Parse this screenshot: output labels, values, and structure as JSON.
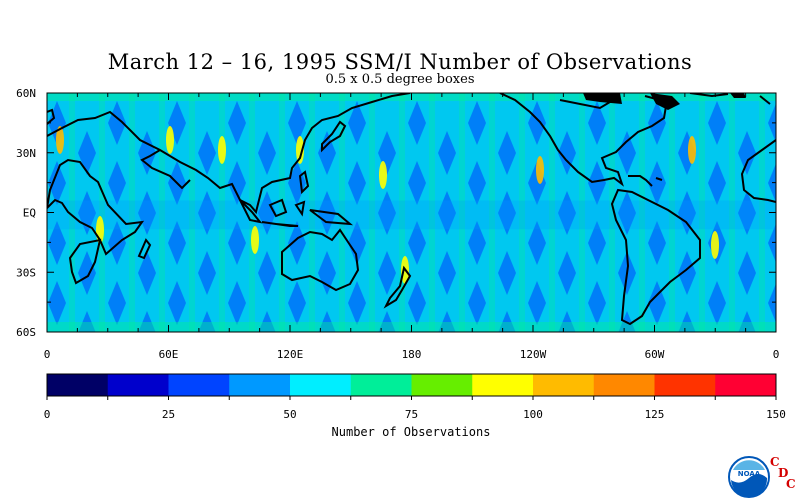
{
  "title": "March 12 – 16, 1995 SSM/I Number of Observations",
  "subtitle": "0.5 x 0.5 degree boxes",
  "map": {
    "lat_labels": [
      "60N",
      "30N",
      "EQ",
      "30S",
      "60S"
    ],
    "lon_labels": [
      "0",
      "60E",
      "120E",
      "180",
      "120W",
      "60W",
      "0"
    ],
    "projection": "cylindrical, 0 to 360 longitude, 60S to 60N"
  },
  "colorbar": {
    "label": "Number of Observations",
    "ticks": [
      "0",
      "25",
      "50",
      "75",
      "100",
      "125",
      "150"
    ],
    "colors": [
      "#000066",
      "#0000cc",
      "#0044ff",
      "#0099ff",
      "#00eeff",
      "#00ee99",
      "#66ee00",
      "#ffff00",
      "#ffbb00",
      "#ff8800",
      "#ff3300",
      "#ff0033"
    ]
  },
  "logo": {
    "agency": "NOAA",
    "letters": [
      "C",
      "D",
      "C"
    ]
  }
}
